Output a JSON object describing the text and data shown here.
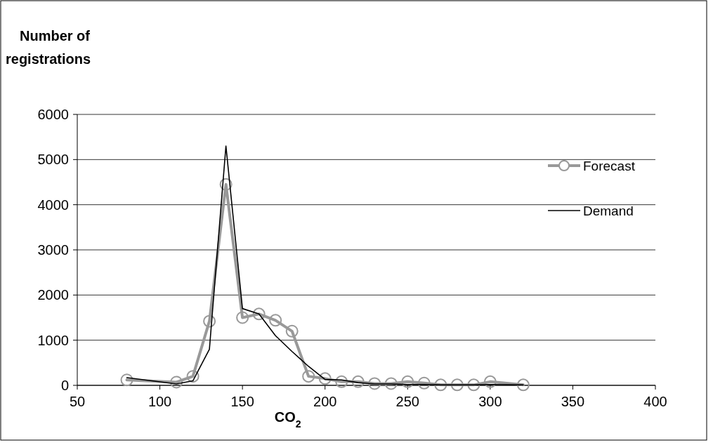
{
  "chart_data": {
    "type": "line",
    "ylabel": "Number of\nregistrations",
    "xlabel": "CO$_{2}$",
    "x": [
      80,
      110,
      120,
      130,
      140,
      150,
      160,
      170,
      180,
      190,
      200,
      210,
      220,
      230,
      240,
      250,
      260,
      270,
      280,
      290,
      300,
      320
    ],
    "series": [
      {
        "name": "Forecast",
        "color": "#999999",
        "marker": "circle",
        "values": [
          120,
          70,
          200,
          1420,
          4450,
          1500,
          1580,
          1440,
          1200,
          200,
          150,
          80,
          80,
          40,
          40,
          80,
          50,
          10,
          10,
          10,
          80,
          10
        ]
      },
      {
        "name": "Demand",
        "color": "#000000",
        "marker": "none",
        "values": [
          170,
          30,
          100,
          800,
          5300,
          1700,
          1580,
          1100,
          750,
          420,
          130,
          120,
          60,
          30,
          30,
          20,
          20,
          10,
          10,
          10,
          20,
          10
        ]
      }
    ],
    "xlim": [
      50,
      400
    ],
    "xticks": [
      50,
      100,
      150,
      200,
      250,
      300,
      350,
      400
    ],
    "ylim": [
      0,
      6000
    ],
    "yticks": [
      0,
      1000,
      2000,
      3000,
      4000,
      5000,
      6000
    ],
    "grid": "y",
    "legend": "right"
  }
}
